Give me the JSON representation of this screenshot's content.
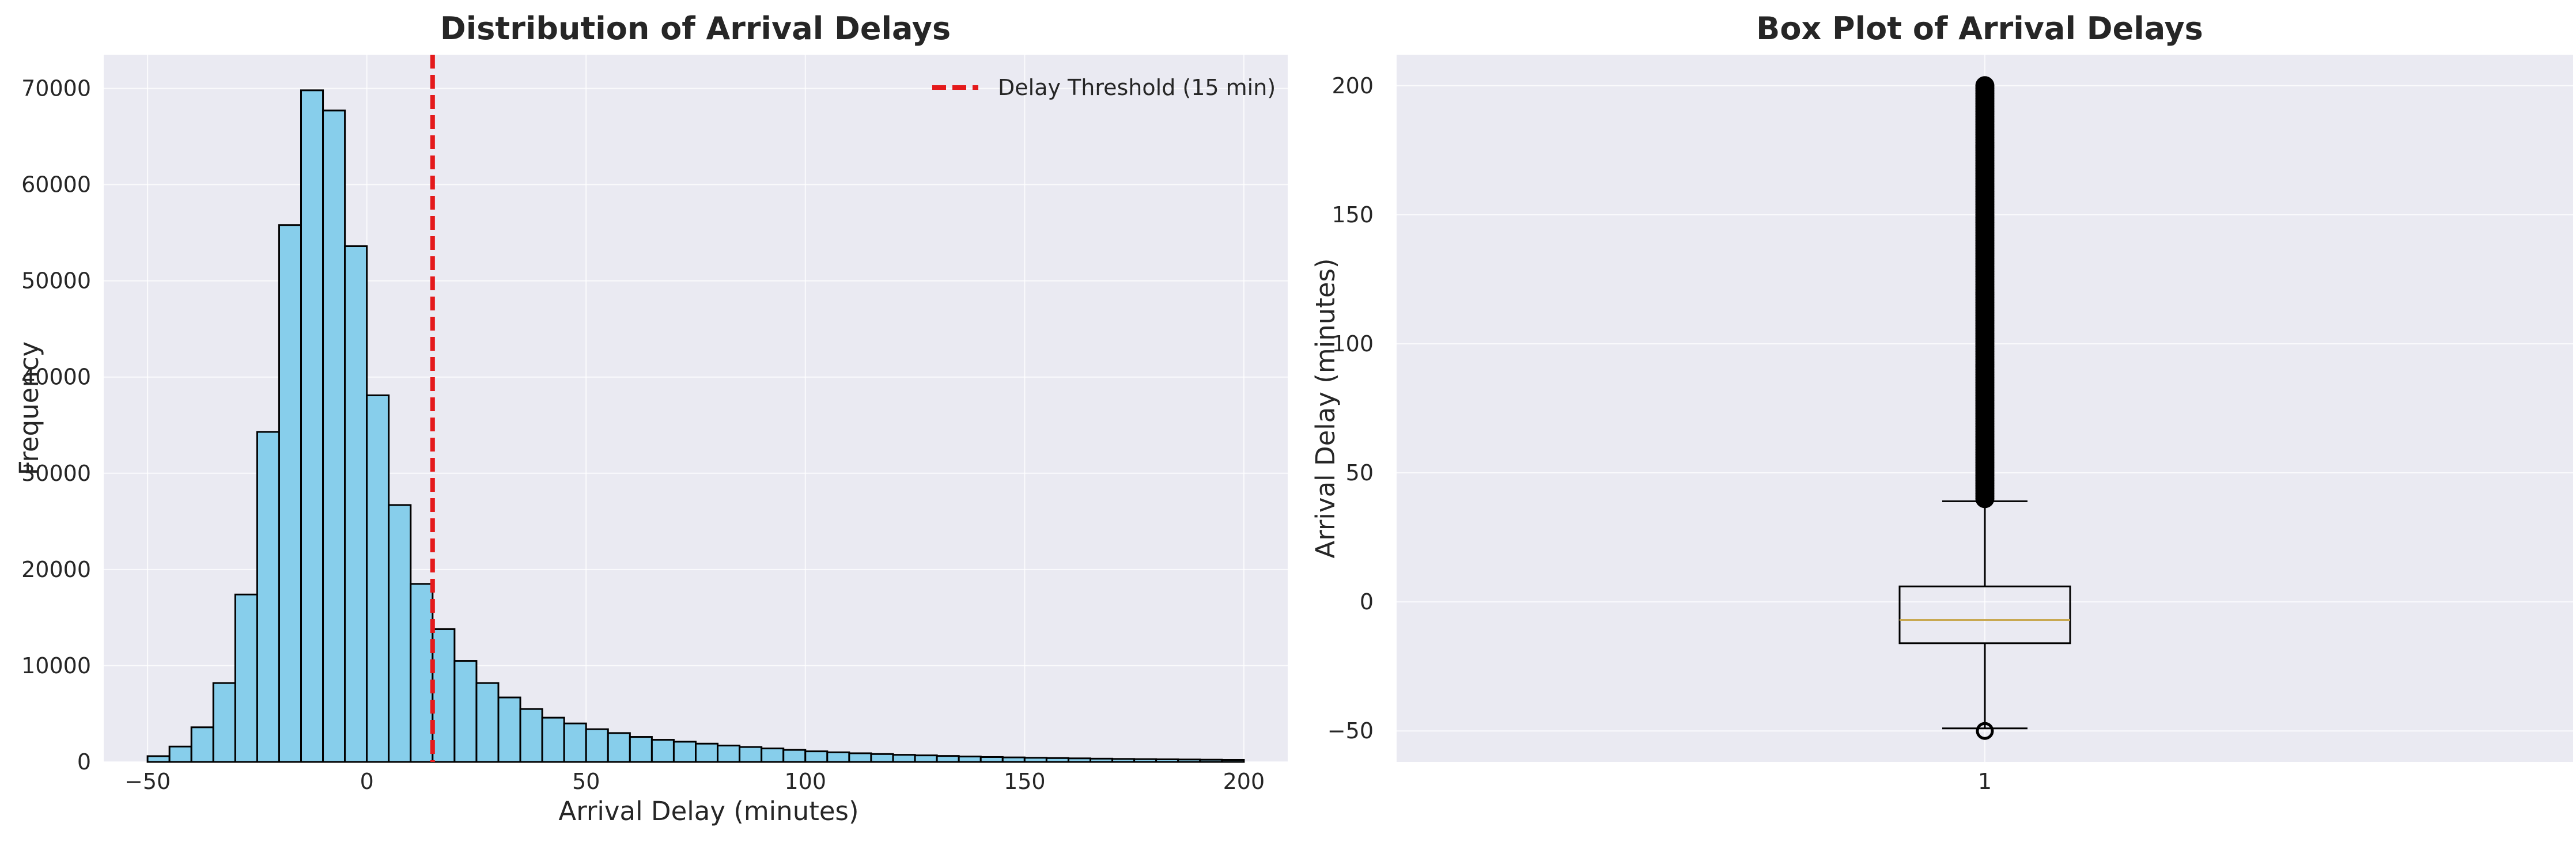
{
  "colors": {
    "plot_bg": "#eaeaf2",
    "grid": "#ffffff",
    "hist_fill": "#87ceeb",
    "hist_edge": "#000000",
    "threshold": "#e41a1c",
    "median": "#c8a850",
    "text": "#262626"
  },
  "chart_data": [
    {
      "type": "bar",
      "subtype": "histogram",
      "title": "Distribution of Arrival Delays",
      "xlabel": "Arrival Delay (minutes)",
      "ylabel": "Frequency",
      "xlim": [
        -60,
        210
      ],
      "ylim": [
        0,
        73500
      ],
      "bin_start": -50,
      "bin_width": 5,
      "values": [
        600,
        1600,
        3600,
        8200,
        17400,
        34300,
        55800,
        69800,
        67700,
        53600,
        38100,
        26700,
        18500,
        13800,
        10500,
        8200,
        6700,
        5500,
        4600,
        4000,
        3400,
        3000,
        2600,
        2300,
        2100,
        1900,
        1700,
        1550,
        1400,
        1250,
        1100,
        1000,
        900,
        820,
        740,
        680,
        620,
        560,
        510,
        470,
        430,
        400,
        370,
        340,
        310,
        290,
        270,
        250,
        230,
        210
      ],
      "xticks": [
        -50,
        0,
        50,
        100,
        150,
        200
      ],
      "xtick_labels": [
        "−50",
        "0",
        "50",
        "100",
        "150",
        "200"
      ],
      "yticks": [
        0,
        10000,
        20000,
        30000,
        40000,
        50000,
        60000,
        70000
      ],
      "ytick_labels": [
        "0",
        "10000",
        "20000",
        "30000",
        "40000",
        "50000",
        "60000",
        "70000"
      ],
      "threshold": {
        "x": 15,
        "label": "Delay Threshold (15 min)",
        "style": "dashed"
      },
      "grid": true,
      "legend": "top-right"
    },
    {
      "type": "box",
      "title": "Box Plot of Arrival Delays",
      "xlabel": "",
      "ylabel": "Arrival Delay (minutes)",
      "ylim": [
        -62,
        212
      ],
      "categories": [
        "1"
      ],
      "box": {
        "whisker_low": -49,
        "q1": -16,
        "median": -7,
        "q3": 6,
        "whisker_high": 39,
        "outliers_low": [
          -50
        ],
        "outliers_high_range": [
          40,
          200
        ]
      },
      "yticks": [
        -50,
        0,
        50,
        100,
        150,
        200
      ],
      "ytick_labels": [
        "−50",
        "0",
        "50",
        "100",
        "150",
        "200"
      ],
      "grid": true
    }
  ]
}
